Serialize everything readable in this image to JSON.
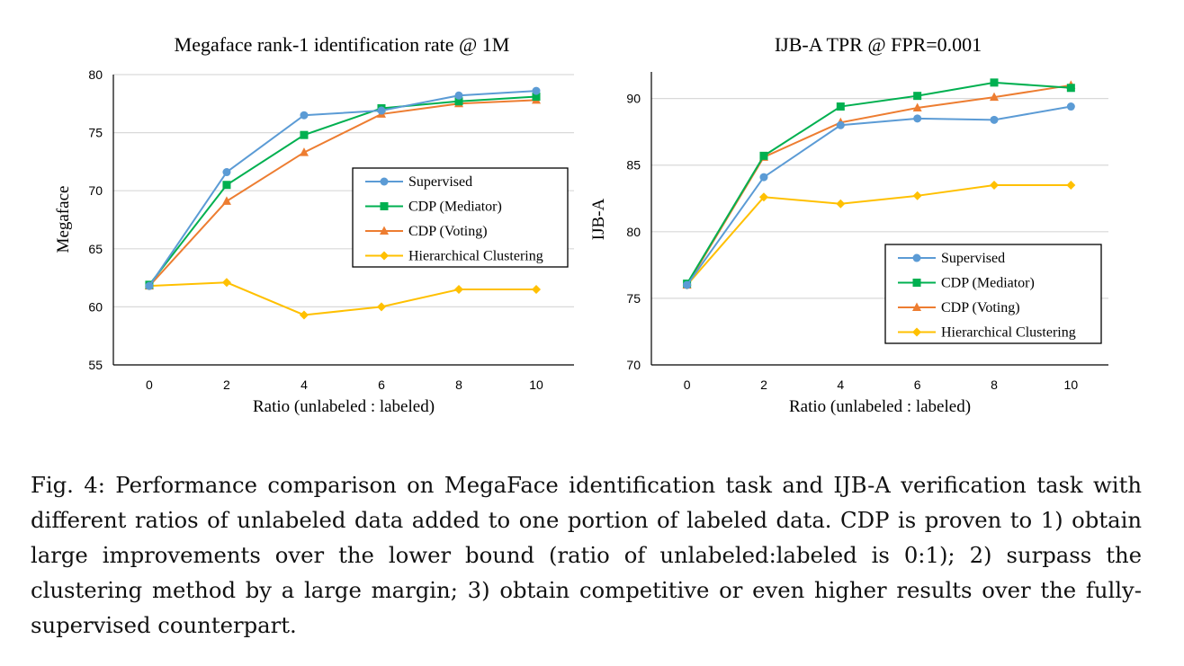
{
  "colors": {
    "supervised": "#5b9bd5",
    "cdp_mediator": "#00b050",
    "cdp_voting": "#ed7d31",
    "hierarchical": "#ffc000",
    "gridline": "#d9d9d9",
    "axis": "#000000"
  },
  "chart_data": [
    {
      "type": "line",
      "title": "Megaface rank-1 identification rate @ 1M",
      "xlabel": "Ratio (unlabeled : labeled)",
      "ylabel": "Megaface",
      "x": [
        0,
        2,
        4,
        6,
        8,
        10
      ],
      "ylim": [
        55,
        80
      ],
      "yticks": [
        55,
        60,
        65,
        70,
        75,
        80
      ],
      "grid": true,
      "legend_position": "center-right",
      "series": [
        {
          "name": "Supervised",
          "marker": "circle",
          "values": [
            61.8,
            71.6,
            76.5,
            76.9,
            78.2,
            78.6
          ]
        },
        {
          "name": "CDP (Mediator)",
          "marker": "square",
          "values": [
            61.9,
            70.5,
            74.8,
            77.1,
            77.7,
            78.1
          ]
        },
        {
          "name": "CDP (Voting)",
          "marker": "triangle",
          "values": [
            61.8,
            69.1,
            73.3,
            76.6,
            77.5,
            77.8
          ]
        },
        {
          "name": "Hierarchical Clustering",
          "marker": "diamond",
          "values": [
            61.8,
            62.1,
            59.3,
            60.0,
            61.5,
            61.5
          ]
        }
      ]
    },
    {
      "type": "line",
      "title": "IJB-A  TPR @ FPR=0.001",
      "xlabel": "Ratio (unlabeled : labeled)",
      "ylabel": "IJB-A",
      "x": [
        0,
        2,
        4,
        6,
        8,
        10
      ],
      "ylim": [
        70,
        92
      ],
      "yticks": [
        70,
        75,
        80,
        85,
        90
      ],
      "grid": true,
      "legend_position": "bottom-right",
      "series": [
        {
          "name": "Supervised",
          "marker": "circle",
          "values": [
            76.0,
            84.1,
            88.0,
            88.5,
            88.4,
            89.4
          ]
        },
        {
          "name": "CDP (Mediator)",
          "marker": "square",
          "values": [
            76.1,
            85.7,
            89.4,
            90.2,
            91.2,
            90.8
          ]
        },
        {
          "name": "CDP (Voting)",
          "marker": "triangle",
          "values": [
            76.0,
            85.6,
            88.2,
            89.3,
            90.1,
            91.0
          ]
        },
        {
          "name": "Hierarchical Clustering",
          "marker": "diamond",
          "values": [
            76.0,
            82.6,
            82.1,
            82.7,
            83.5,
            83.5
          ]
        }
      ]
    }
  ],
  "caption": "Fig. 4: Performance comparison on MegaFace identification task and IJB-A verification task with different ratios of unlabeled data added to one portion of labeled data. CDP is proven to 1) obtain large improvements over the lower bound (ratio of unlabeled:labeled is 0:1); 2) surpass the clustering method by a large margin; 3) obtain competitive or even higher results over the fully-supervised counterpart."
}
